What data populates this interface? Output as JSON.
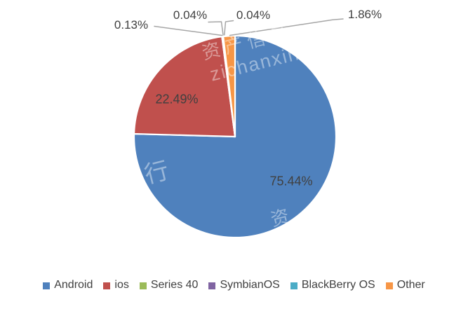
{
  "chart_data": {
    "type": "pie",
    "title": "",
    "slices": [
      {
        "label": "Android",
        "value": 75.44,
        "display": "75.44%",
        "color": "#4F81BD"
      },
      {
        "label": "ios",
        "value": 22.49,
        "display": "22.49%",
        "color": "#C0504D"
      },
      {
        "label": "Series 40",
        "value": 0.13,
        "display": "0.13%",
        "color": "#9BBB59"
      },
      {
        "label": "SymbianOS",
        "value": 0.04,
        "display": "0.04%",
        "color": "#8064A2"
      },
      {
        "label": "BlackBerry OS",
        "value": 0.04,
        "display": "0.04%",
        "color": "#4BACC6"
      },
      {
        "label": "Other",
        "value": 1.86,
        "display": "1.86%",
        "color": "#F79646"
      }
    ],
    "start_angle_deg": 0,
    "direction": "clockwise",
    "slice_border_color": "#FFFFFF",
    "leader_line_color": "#A6A6A6",
    "label_color": "#404040",
    "legend_position": "bottom"
  },
  "watermark": {
    "line1": "资产信息",
    "line2": "zichanxinxi",
    "fragment_left": "发行",
    "fragment_bottom_right": "资"
  }
}
